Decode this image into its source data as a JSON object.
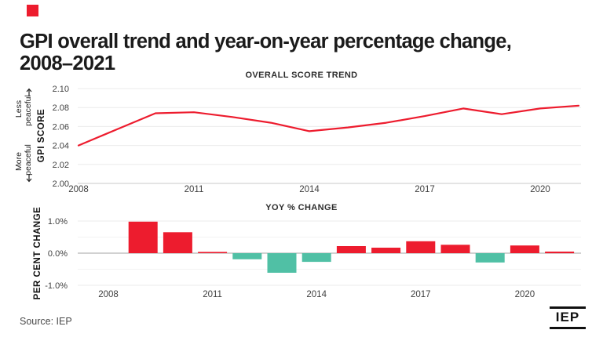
{
  "page": {
    "title": "GPI overall trend and year-on-year percentage change,\n2008–2021",
    "source": "Source: IEP",
    "logo_text": "IEP",
    "accent_red": "#ed1c2e",
    "accent_teal": "#50c0a5"
  },
  "chart_data": [
    {
      "type": "line",
      "title": "OVERALL SCORE TREND",
      "ylabel": "GPI SCORE",
      "side_label_top": "Less peaceful",
      "side_label_bottom": "More peaceful",
      "x": [
        2008,
        2009,
        2010,
        2011,
        2012,
        2013,
        2014,
        2015,
        2016,
        2017,
        2018,
        2019,
        2020,
        2021
      ],
      "values": [
        2.04,
        2.057,
        2.074,
        2.075,
        2.07,
        2.064,
        2.055,
        2.059,
        2.064,
        2.071,
        2.079,
        2.073,
        2.079,
        2.082
      ],
      "ylim": [
        2.0,
        2.1
      ],
      "yticks": [
        {
          "label": "2.10",
          "value": 2.1
        },
        {
          "label": "2.08",
          "value": 2.08
        },
        {
          "label": "2.06",
          "value": 2.06
        },
        {
          "label": "2.04",
          "value": 2.04
        },
        {
          "label": "2.02",
          "value": 2.02
        },
        {
          "label": "2.00",
          "value": 2.0
        }
      ],
      "xticks": [
        {
          "label": "2008",
          "value": 2008
        },
        {
          "label": "2011",
          "value": 2011
        },
        {
          "label": "2014",
          "value": 2014
        },
        {
          "label": "2017",
          "value": 2017
        },
        {
          "label": "2020",
          "value": 2020
        }
      ],
      "line_color": "#ed1c2e",
      "grid": true,
      "legend": "none"
    },
    {
      "type": "bar",
      "title": "YOY % CHANGE",
      "ylabel": "PER CENT CHANGE",
      "x": [
        2009,
        2010,
        2011,
        2012,
        2013,
        2014,
        2015,
        2016,
        2017,
        2018,
        2019,
        2020,
        2021
      ],
      "values": [
        0.98,
        0.65,
        0.04,
        -0.19,
        -0.61,
        -0.27,
        0.22,
        0.17,
        0.37,
        0.26,
        -0.29,
        0.24,
        0.05
      ],
      "ylim": [
        -1.0,
        1.0
      ],
      "yticks": [
        {
          "label": "1.0%",
          "value": 1.0
        },
        {
          "label": "0.0%",
          "value": 0.0
        },
        {
          "label": "-1.0%",
          "value": -1.0
        }
      ],
      "xticks": [
        {
          "label": "2008",
          "value": 2008
        },
        {
          "label": "2011",
          "value": 2011
        },
        {
          "label": "2014",
          "value": 2014
        },
        {
          "label": "2017",
          "value": 2017
        },
        {
          "label": "2020",
          "value": 2020
        }
      ],
      "positive_color": "#ed1c2e",
      "negative_color": "#50c0a5",
      "grid": true,
      "legend": "none"
    }
  ]
}
